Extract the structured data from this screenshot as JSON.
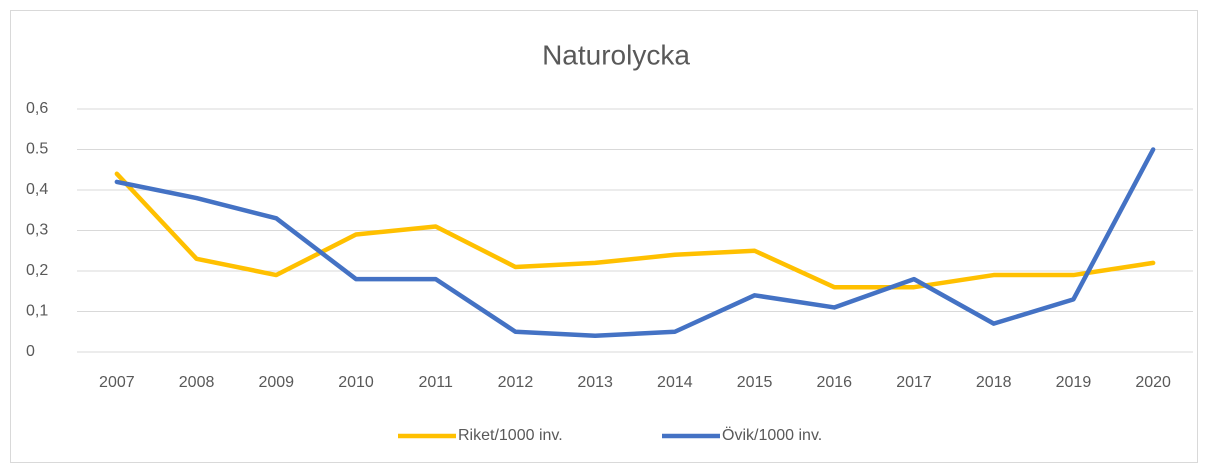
{
  "chart_data": {
    "type": "line",
    "title": "Naturolycka",
    "categories": [
      "2007",
      "2008",
      "2009",
      "2010",
      "2011",
      "2012",
      "2013",
      "2014",
      "2015",
      "2016",
      "2017",
      "2018",
      "2019",
      "2020"
    ],
    "series": [
      {
        "name": "Riket/1000 inv.",
        "color": "#ffc000",
        "values": [
          0.44,
          0.23,
          0.19,
          0.29,
          0.31,
          0.21,
          0.22,
          0.24,
          0.25,
          0.16,
          0.16,
          0.19,
          0.19,
          0.22
        ]
      },
      {
        "name": "Övik/1000 inv.",
        "color": "#4472c4",
        "values": [
          0.42,
          0.38,
          0.33,
          0.18,
          0.18,
          0.05,
          0.04,
          0.05,
          0.14,
          0.11,
          0.18,
          0.07,
          0.13,
          0.5
        ]
      }
    ],
    "ylim": [
      0,
      0.6
    ],
    "yticks": [
      0,
      {
        "value": 0.1,
        "label": "0,1"
      },
      {
        "value": 0.2,
        "label": "0,2"
      },
      {
        "value": 0.3,
        "label": "0,3"
      },
      {
        "value": 0.4,
        "label": "0,4"
      },
      0.5,
      {
        "value": 0.6,
        "label": "0,6"
      }
    ],
    "grid": true,
    "legend": "bottom"
  }
}
